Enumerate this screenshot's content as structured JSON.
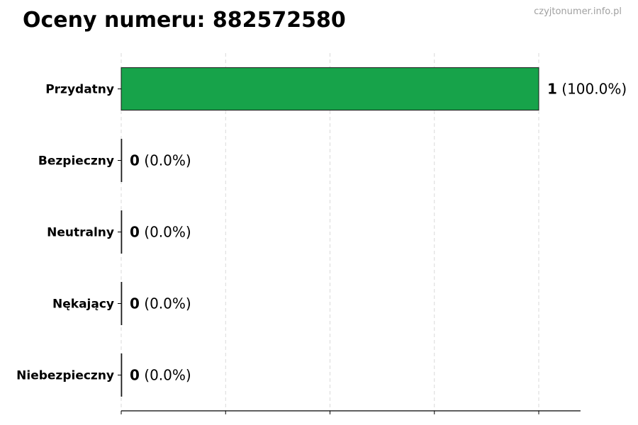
{
  "chart_data": {
    "type": "bar",
    "orientation": "horizontal",
    "title": "Oceny numeru: 882572580",
    "watermark": "czyjtonumer.info.pl",
    "categories": [
      "Przydatny",
      "Bezpieczny",
      "Neutralny",
      "Nękający",
      "Niebezpieczny"
    ],
    "values": [
      1,
      0,
      0,
      0,
      0
    ],
    "percent_labels": [
      "(100.0%)",
      "(0.0%)",
      "(0.0%)",
      "(0.0%)",
      "(0.0%)"
    ],
    "colors": [
      "#17a34a",
      "#17a34a",
      "#17a34a",
      "#17a34a",
      "#17a34a"
    ],
    "xlim": [
      0,
      1.1
    ],
    "xticks": [
      0,
      0.25,
      0.5,
      0.75,
      1.0
    ],
    "xtick_labels_shown": false,
    "grid": "x, dashed",
    "xlabel": "",
    "ylabel": ""
  }
}
